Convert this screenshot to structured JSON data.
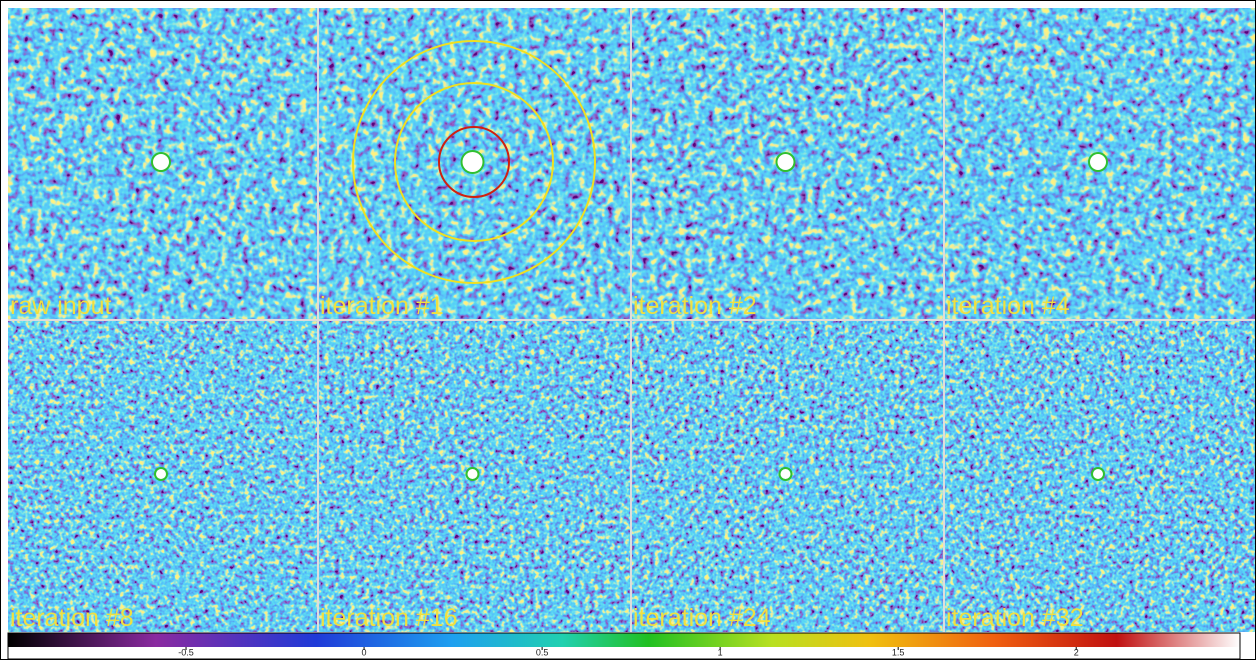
{
  "panels": [
    {
      "label": "raw input"
    },
    {
      "label": "iteration #1"
    },
    {
      "label": "iteration #2"
    },
    {
      "label": "iteration #4"
    },
    {
      "label": "iteration #8"
    },
    {
      "label": "iteration #16"
    },
    {
      "label": "iteration #24"
    },
    {
      "label": "iteration #32"
    }
  ],
  "colorbar": {
    "lim": [
      -1,
      2.46
    ],
    "ticks": [
      -0.5,
      0,
      0.5,
      1,
      1.5,
      2
    ]
  }
}
